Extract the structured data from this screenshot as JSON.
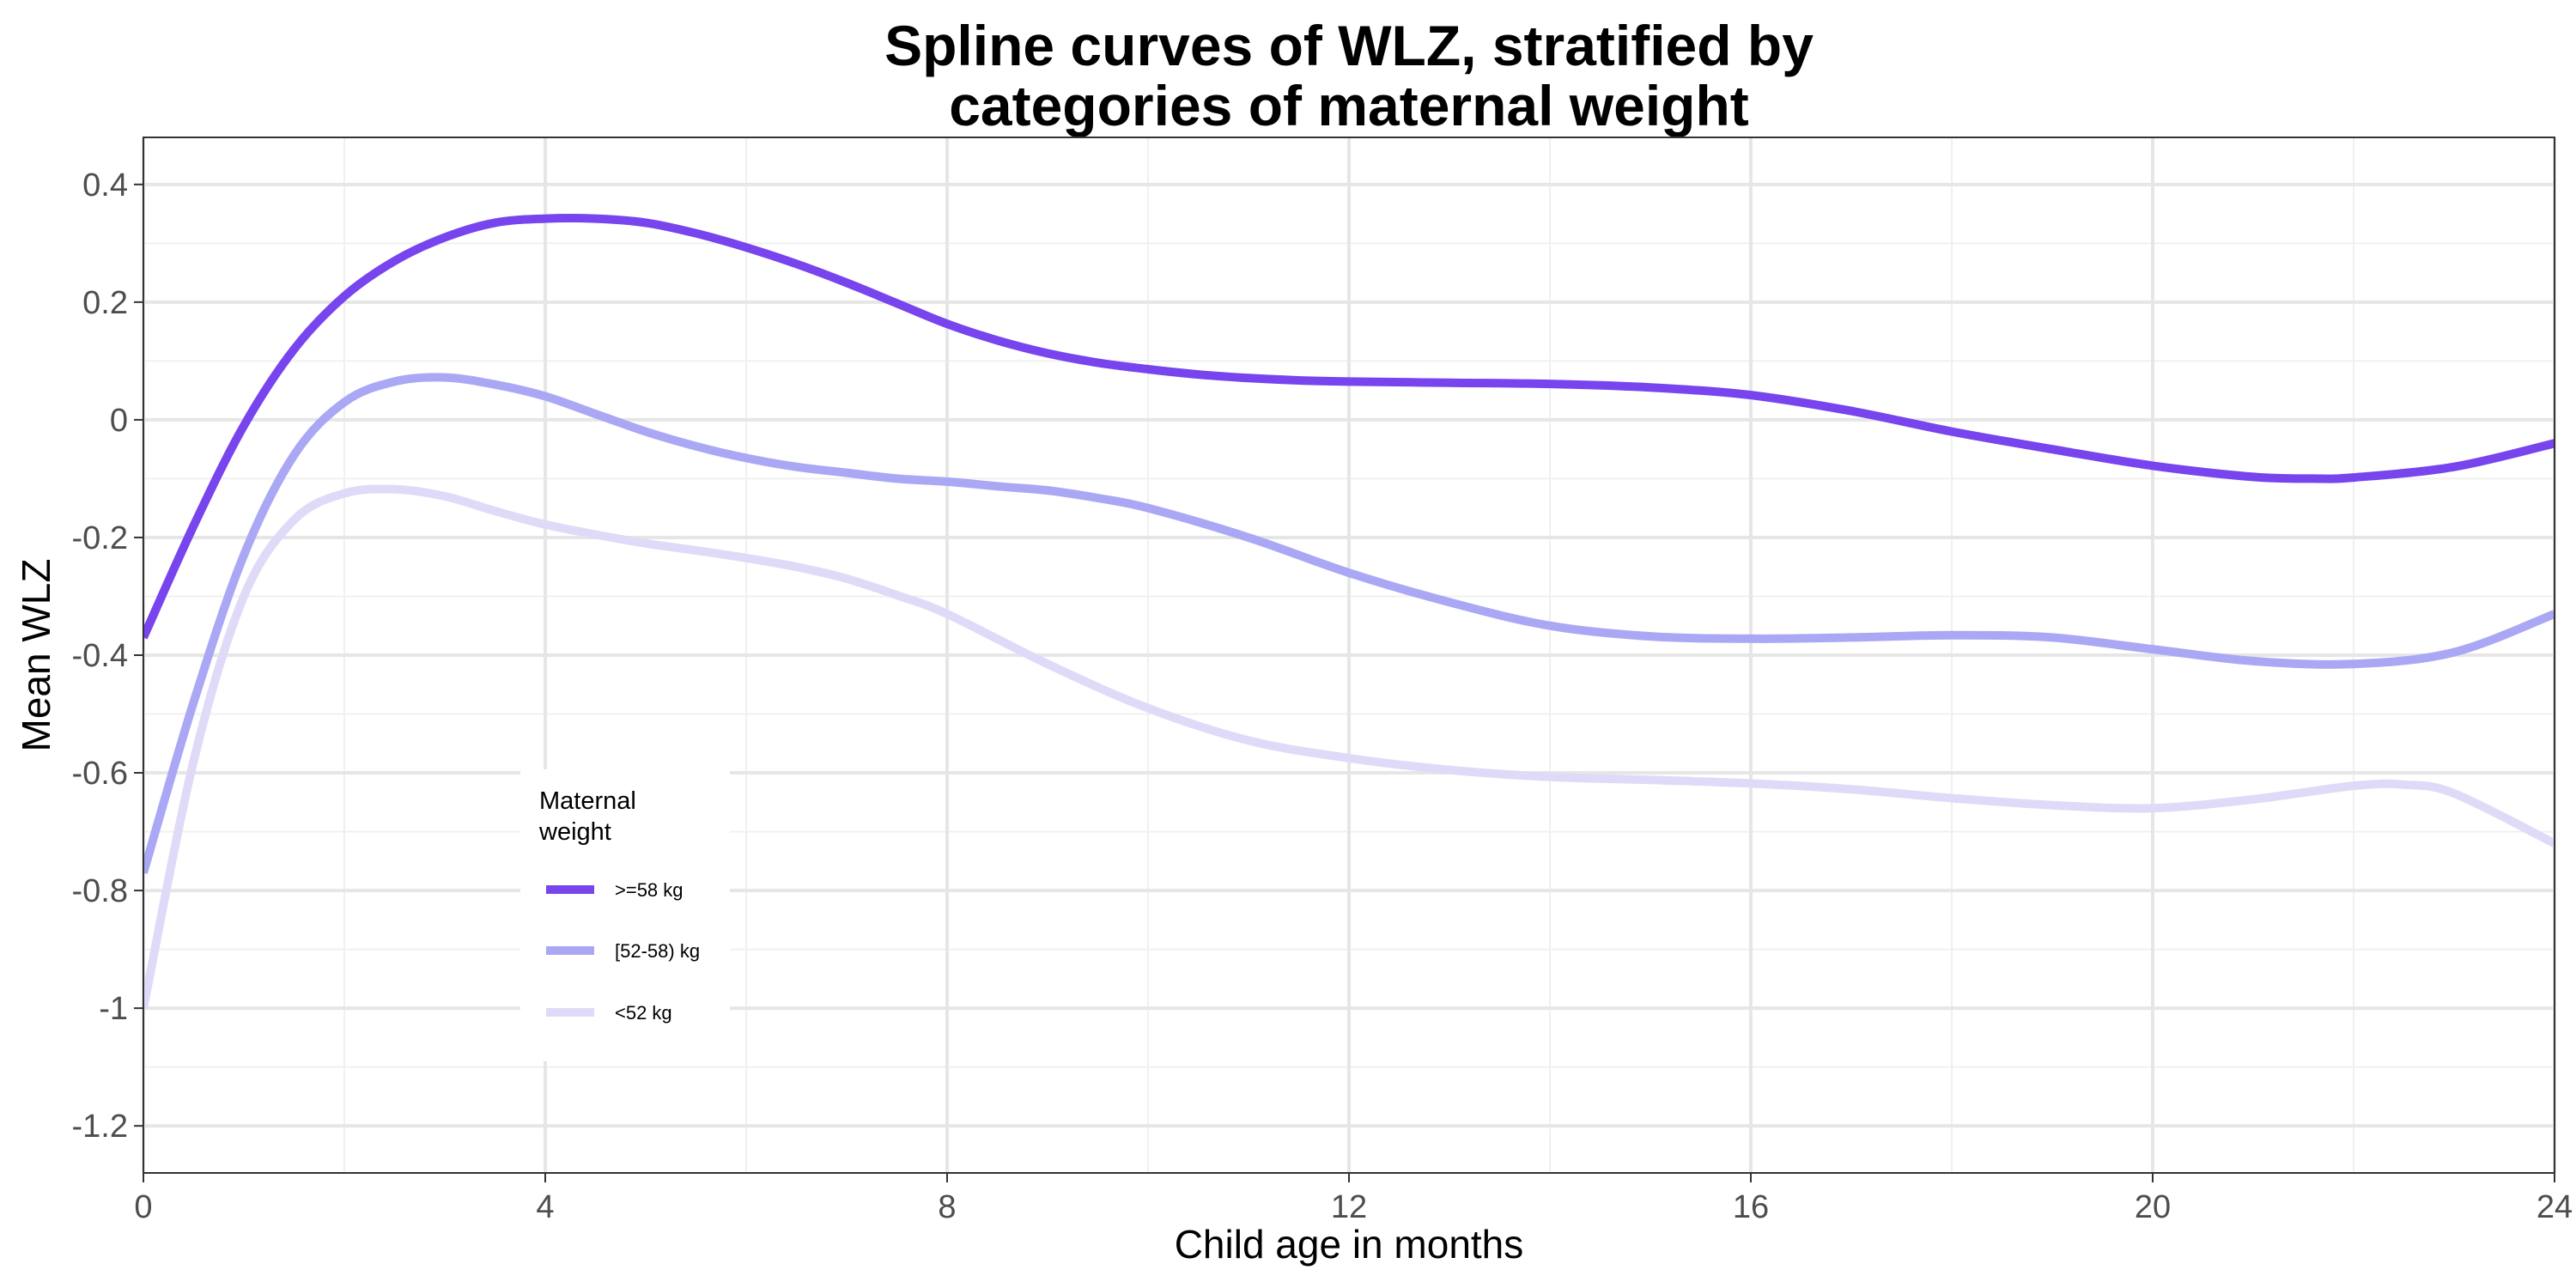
{
  "chart_data": {
    "type": "line",
    "title_lines": [
      "Spline curves of WLZ, stratified by",
      "categories of maternal weight"
    ],
    "xlabel": "Child age in months",
    "ylabel": "Mean WLZ",
    "xlim": [
      0,
      24
    ],
    "ylim": [
      -1.28,
      0.48
    ],
    "x_ticks": [
      0,
      4,
      8,
      12,
      16,
      20,
      24
    ],
    "x_tick_labels": [
      "0",
      "4",
      "8",
      "12",
      "16",
      "20",
      "24"
    ],
    "y_ticks": [
      0.4,
      0.2,
      0,
      -0.2,
      -0.4,
      -0.6,
      -0.8,
      -1,
      -1.2
    ],
    "y_tick_labels": [
      "0.4",
      "0.2",
      "0",
      "-0.2",
      "-0.4",
      "-0.6",
      "-0.8",
      "-1",
      "-1.2"
    ],
    "x_minor_ticks": [
      2,
      6,
      10,
      14,
      18,
      22
    ],
    "y_minor_ticks": [
      0.3,
      0.1,
      -0.1,
      -0.3,
      -0.5,
      -0.7,
      -0.9,
      -1.1
    ],
    "grid": true,
    "legend": {
      "title_lines": [
        "Maternal",
        "weight"
      ],
      "position": "inside-left"
    },
    "series": [
      {
        "name": ">=58 kg",
        "color": "#7744ee",
        "x": [
          0,
          0.5,
          1,
          1.5,
          2,
          2.5,
          3,
          3.5,
          4,
          4.5,
          5,
          5.5,
          6,
          6.5,
          7,
          7.5,
          8,
          8.5,
          9,
          9.5,
          10,
          10.5,
          11,
          11.5,
          12,
          13,
          14,
          15,
          16,
          17,
          18,
          19,
          20,
          21,
          21.6,
          22,
          23,
          24
        ],
        "y": [
          -0.37,
          -0.18,
          -0.01,
          0.12,
          0.21,
          0.27,
          0.31,
          0.335,
          0.342,
          0.342,
          0.335,
          0.317,
          0.293,
          0.265,
          0.233,
          0.198,
          0.163,
          0.135,
          0.113,
          0.097,
          0.086,
          0.077,
          0.071,
          0.067,
          0.065,
          0.063,
          0.061,
          0.055,
          0.042,
          0.015,
          -0.02,
          -0.05,
          -0.078,
          -0.097,
          -0.1,
          -0.098,
          -0.08,
          -0.04
        ]
      },
      {
        "name": "[52-58) kg",
        "color": "#aaa8f4",
        "x": [
          0,
          0.5,
          1,
          1.5,
          2,
          2.5,
          3,
          3.5,
          4,
          4.5,
          5,
          5.5,
          6,
          6.5,
          7,
          7.5,
          8,
          8.5,
          9,
          9.5,
          10,
          11,
          12,
          13,
          14,
          15,
          16,
          17,
          18,
          19,
          20,
          21,
          22,
          23,
          24
        ],
        "y": [
          -0.77,
          -0.48,
          -0.23,
          -0.06,
          0.03,
          0.065,
          0.072,
          0.06,
          0.04,
          0.01,
          -0.02,
          -0.045,
          -0.065,
          -0.08,
          -0.09,
          -0.1,
          -0.105,
          -0.113,
          -0.12,
          -0.133,
          -0.15,
          -0.2,
          -0.26,
          -0.31,
          -0.35,
          -0.368,
          -0.372,
          -0.37,
          -0.366,
          -0.37,
          -0.39,
          -0.41,
          -0.415,
          -0.395,
          -0.33
        ]
      },
      {
        "name": "<52 kg",
        "color": "#e0daf8",
        "x": [
          0,
          0.5,
          1,
          1.5,
          2,
          2.5,
          3,
          3.5,
          4,
          4.5,
          5,
          5.5,
          6,
          6.5,
          7,
          7.5,
          8,
          9,
          10,
          11,
          12,
          13,
          14,
          15,
          16,
          17,
          18,
          19,
          20,
          21,
          22,
          22.5,
          23,
          24
        ],
        "y": [
          -1.0,
          -0.58,
          -0.3,
          -0.17,
          -0.125,
          -0.118,
          -0.13,
          -0.155,
          -0.178,
          -0.195,
          -0.21,
          -0.222,
          -0.235,
          -0.25,
          -0.27,
          -0.298,
          -0.33,
          -0.415,
          -0.49,
          -0.545,
          -0.575,
          -0.595,
          -0.607,
          -0.612,
          -0.618,
          -0.628,
          -0.643,
          -0.655,
          -0.66,
          -0.645,
          -0.622,
          -0.62,
          -0.635,
          -0.72
        ]
      }
    ]
  }
}
